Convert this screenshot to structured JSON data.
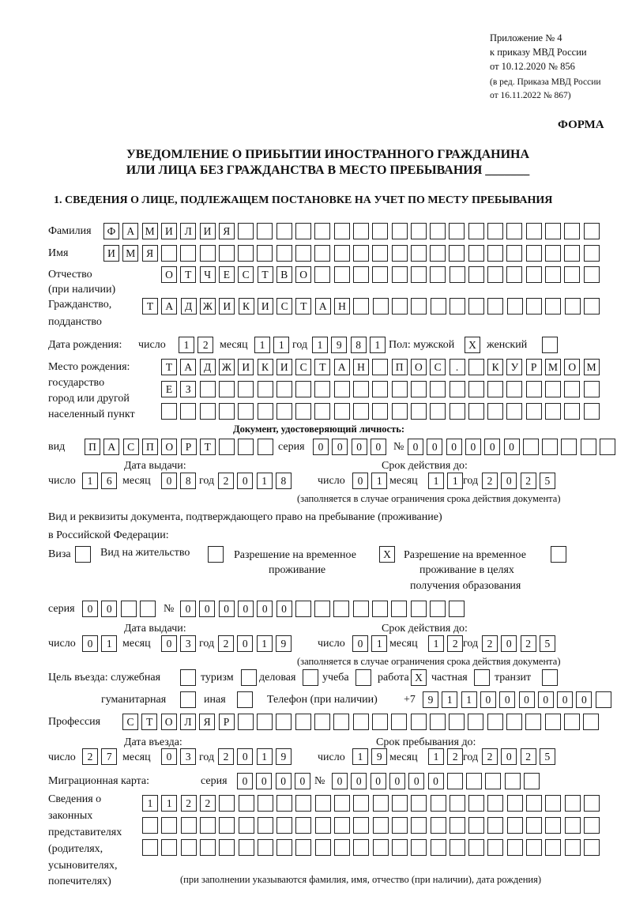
{
  "header": {
    "appendix": [
      "Приложение № 4",
      "к приказу МВД России",
      "от 10.12.2020 № 856"
    ],
    "amendment": [
      "(в ред. Приказа МВД России",
      "от 16.11.2022 № 867)"
    ],
    "form_label": "ФОРМА",
    "title_line1": "УВЕДОМЛЕНИЕ О ПРИБЫТИИ ИНОСТРАННОГО ГРАЖДАНИНА",
    "title_line2": "ИЛИ ЛИЦА БЕЗ ГРАЖДАНСТВА В МЕСТО ПРЕБЫВАНИЯ _______",
    "section_title": "1. СВЕДЕНИЯ О ЛИЦЕ, ПОДЛЕЖАЩЕМ ПОСТАНОВКЕ НА УЧЕТ ПО МЕСТУ ПРЕБЫВАНИЯ"
  },
  "labels": {
    "surname": "Фамилия",
    "name": "Имя",
    "patronymic": "Отчество",
    "patronymic_note": "(при наличии)",
    "citizenship": "Гражданство,",
    "citizenship2": "подданство",
    "birth_date": "Дата рождения:",
    "day": "число",
    "month": "месяц",
    "year": "год",
    "sex": "Пол: мужской",
    "female": "женский",
    "birthplace": [
      "Место рождения:",
      "государство",
      "город или другой",
      "населенный пункт"
    ],
    "id_doc_heading": "Документ, удостоверяющий личность:",
    "kind": "вид",
    "series": "серия",
    "number": "№",
    "issue_date": "Дата выдачи:",
    "valid_until": "Срок действия до:",
    "validity_note": "(заполняется в случае ограничения срока действия документа)",
    "stay_doc_line1": "Вид и реквизиты документа, подтверждающего право на пребывание (проживание)",
    "stay_doc_line2": "в Российской Федерации:",
    "visa": "Виза",
    "residence_permit": "Вид на жительство",
    "temp_residence": [
      "Разрешение на временное",
      "проживание"
    ],
    "temp_residence_edu": [
      "Разрешение на временное",
      "проживание в целях",
      "получения образования"
    ],
    "purpose": "Цель въезда: служебная",
    "tourism": "туризм",
    "business": "деловая",
    "study": "учеба",
    "work": "работа",
    "private": "частная",
    "transit": "транзит",
    "humanitarian": "гуманитарная",
    "other": "иная",
    "phone": "Телефон (при наличии)",
    "phone_prefix": "+7",
    "profession": "Профессия",
    "entry_date": "Дата въезда:",
    "stay_until": "Срок пребывания до:",
    "migration_card": "Миграционная карта:",
    "representatives": [
      "Сведения о",
      "законных",
      "представителях",
      "(родителях,",
      "усыновителях,",
      "попечителях)"
    ],
    "representatives_note": "(при заполнении указываются фамилия, имя, отчество (при наличии), дата рождения)"
  },
  "fields": {
    "surname": "ФАМИЛИЯ",
    "name": "ИМЯ",
    "patronymic": "ОТЧЕСТВО",
    "citizenship": "ТАДЖИКИСТАН",
    "birth_day": "12",
    "birth_month": "11",
    "birth_year": "1981",
    "sex_male": "X",
    "sex_female": "",
    "birthplace_1": "ТАДЖИКИСТАН ПОС. КУРМОМБ",
    "birthplace_2": "ЕЗ",
    "birthplace_3": "",
    "id_kind": "ПАСПОРТ",
    "id_series": "0000",
    "id_number": "000000",
    "id_issue_day": "16",
    "id_issue_month": "08",
    "id_issue_year": "2018",
    "id_valid_day": "01",
    "id_valid_month": "11",
    "id_valid_year": "2025",
    "visa": "",
    "residence_permit": "",
    "temp_residence": "X",
    "temp_residence_edu": "",
    "stay_series": "00",
    "stay_number": "000000",
    "stay_issue_day": "01",
    "stay_issue_month": "03",
    "stay_issue_year": "2019",
    "stay_valid_day": "01",
    "stay_valid_month": "12",
    "stay_valid_year": "2025",
    "purpose_official": "",
    "purpose_tourism": "",
    "purpose_business": "",
    "purpose_study": "",
    "purpose_work": "X",
    "purpose_private": "",
    "purpose_transit": "",
    "purpose_humanitarian": "",
    "purpose_other": "",
    "phone": "911000000",
    "profession": "СТОЛЯР",
    "entry_day": "27",
    "entry_month": "03",
    "entry_year": "2019",
    "stay_until_day": "19",
    "stay_until_month": "12",
    "stay_until_year": "2025",
    "mc_series": "0000",
    "mc_number": "000000",
    "representatives_1": "1122",
    "representatives_2": "",
    "representatives_3": ""
  }
}
